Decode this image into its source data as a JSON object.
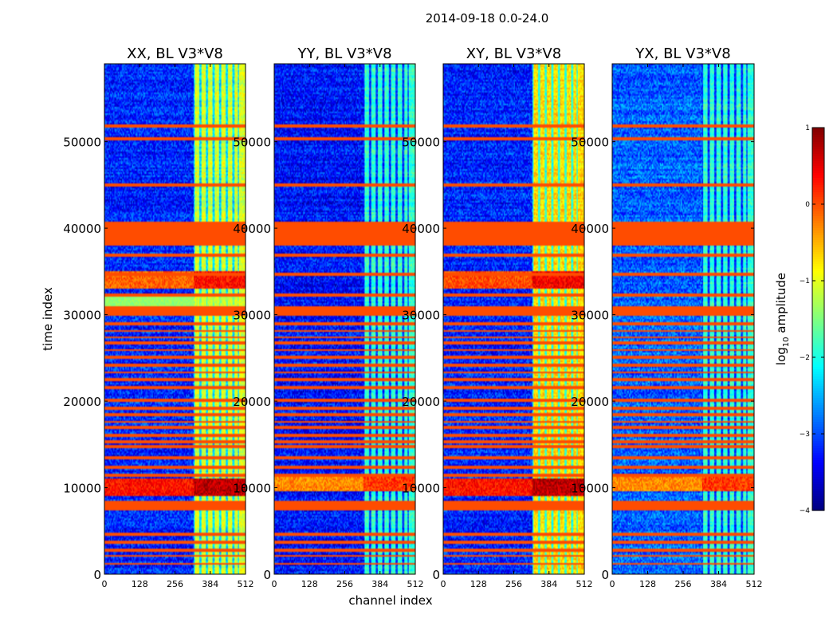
{
  "chart_data": {
    "type": "heatmap",
    "suptitle": "2014-09-18 0.0-24.0",
    "xlabel": "channel index",
    "ylabel": "time index",
    "x_range": [
      0,
      512
    ],
    "y_range": [
      0,
      59000
    ],
    "xticks": [
      0,
      128,
      256,
      384,
      512
    ],
    "yticks": [
      0,
      10000,
      20000,
      30000,
      40000,
      50000
    ],
    "band_start_channel": 325,
    "band_edges_channels": [
      325,
      348,
      372,
      396,
      420,
      444,
      468,
      486
    ],
    "flagged_bands": [
      {
        "start": 7400,
        "end": 8500,
        "value": 0
      },
      {
        "start": 29900,
        "end": 30900,
        "value": 0
      },
      {
        "start": 38000,
        "end": 40800,
        "value": 0
      }
    ],
    "flagged_lines": [
      1200,
      2100,
      2800,
      3700,
      4600,
      11400,
      12300,
      13500,
      14700,
      15300,
      16100,
      16900,
      17600,
      18400,
      19200,
      20100,
      21600,
      22500,
      23300,
      24200,
      25100,
      25900,
      26700,
      27400,
      28100,
      28900,
      32300,
      34600,
      36900,
      45000,
      50300,
      51800
    ],
    "panels": [
      {
        "title": "XX, BL V3*V8",
        "base": -3.2,
        "band_level": -1.1,
        "bright_regions": [
          {
            "t0": 9000,
            "t1": 11000,
            "value": 0.7
          },
          {
            "t0": 30800,
            "t1": 32500,
            "value": -1.4
          },
          {
            "t0": 33000,
            "t1": 35000,
            "value": 0.3
          }
        ]
      },
      {
        "title": "YY, BL V3*V8",
        "base": -3.3,
        "band_level": -1.9,
        "bright_regions": [
          {
            "t0": 9500,
            "t1": 11500,
            "value": 0.1
          }
        ]
      },
      {
        "title": "XY, BL V3*V8",
        "base": -3.2,
        "band_level": -0.7,
        "bright_regions": [
          {
            "t0": 9000,
            "t1": 11000,
            "value": 0.7
          },
          {
            "t0": 33000,
            "t1": 35000,
            "value": 0.4
          }
        ]
      },
      {
        "title": "YX, BL V3*V8",
        "base": -2.9,
        "band_level": -1.9,
        "bright_regions": [
          {
            "t0": 9500,
            "t1": 11500,
            "value": 0.1
          }
        ]
      }
    ],
    "colorbar": {
      "label": "log10 amplitude",
      "label_main": "log",
      "label_sub": "10",
      "label_tail": " amplitude",
      "range": [
        -4,
        1
      ],
      "ticks": [
        -4,
        -3,
        -2,
        -1,
        0,
        1
      ],
      "colormap": "jet"
    }
  }
}
